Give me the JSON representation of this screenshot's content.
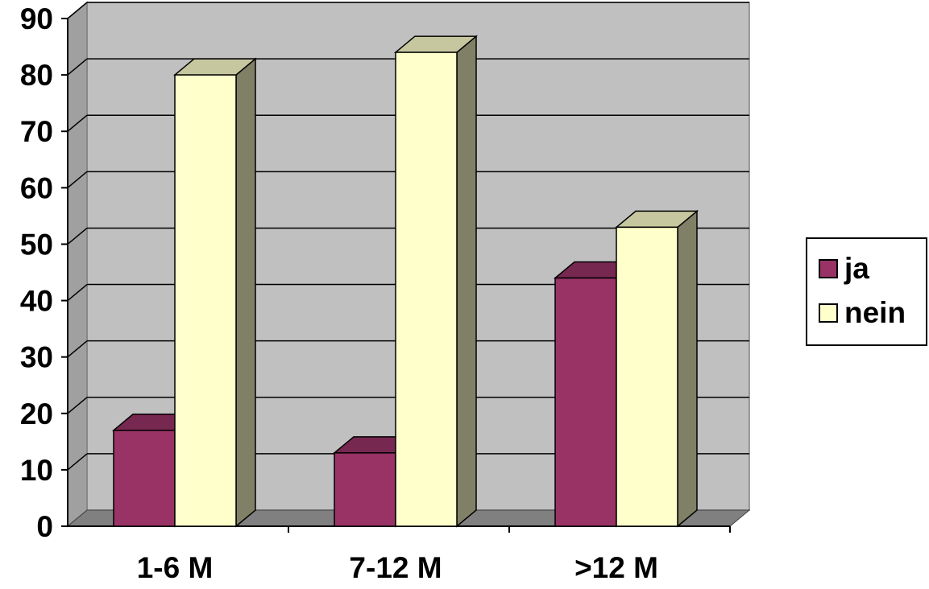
{
  "chart_data": {
    "type": "bar",
    "categories": [
      "1-6 M",
      "7-12 M",
      ">12 M"
    ],
    "series": [
      {
        "name": "ja",
        "values": [
          17,
          13,
          44
        ],
        "color": "#993366"
      },
      {
        "name": "nein",
        "values": [
          80,
          84,
          53
        ],
        "color": "#ffffcc"
      }
    ],
    "ylim": [
      0,
      90
    ],
    "yticks": [
      "0",
      "10",
      "20",
      "30",
      "40",
      "50",
      "60",
      "70",
      "80",
      "90"
    ],
    "grid": true,
    "legend_position": "right",
    "style": "3d-column",
    "colors": {
      "wall": "#c0c0c0",
      "floor": "#808080",
      "gridline": "#000000"
    }
  }
}
